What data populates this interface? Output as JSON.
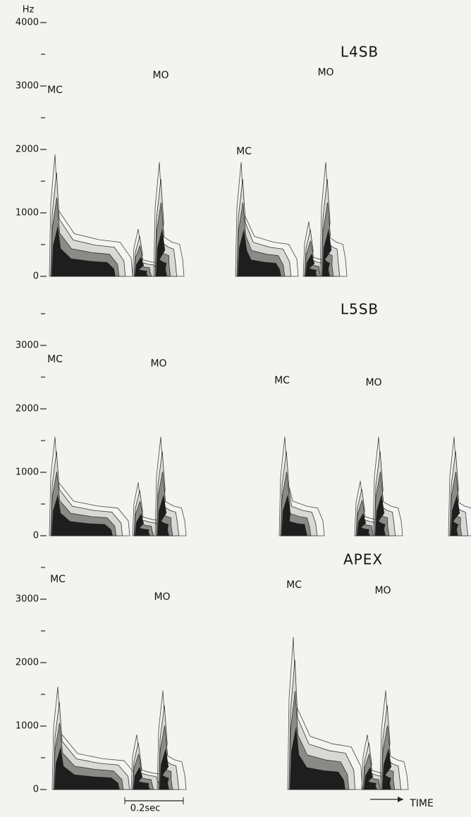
{
  "chart_data": [
    {
      "type": "contour",
      "title": "L4SB",
      "ylabel": "Hz",
      "ylim": [
        0,
        4000
      ],
      "yticks": [
        0,
        1000,
        2000,
        3000,
        4000
      ],
      "annotations": [
        "MC",
        "MO",
        "MC",
        "MO"
      ]
    },
    {
      "type": "contour",
      "title": "L5SB",
      "ylim": [
        0,
        4000
      ],
      "yticks": [
        0,
        1000,
        2000,
        3000
      ],
      "annotations": [
        "MC",
        "MO",
        "MC",
        "MO"
      ]
    },
    {
      "type": "contour",
      "title": "APEX",
      "ylim": [
        0,
        4000
      ],
      "yticks": [
        0,
        1000,
        2000,
        3000
      ],
      "annotations": [
        "MC",
        "MO",
        "MC",
        "MO"
      ],
      "scale_bar": "0.2sec",
      "xlabel": "TIME"
    }
  ]
}
